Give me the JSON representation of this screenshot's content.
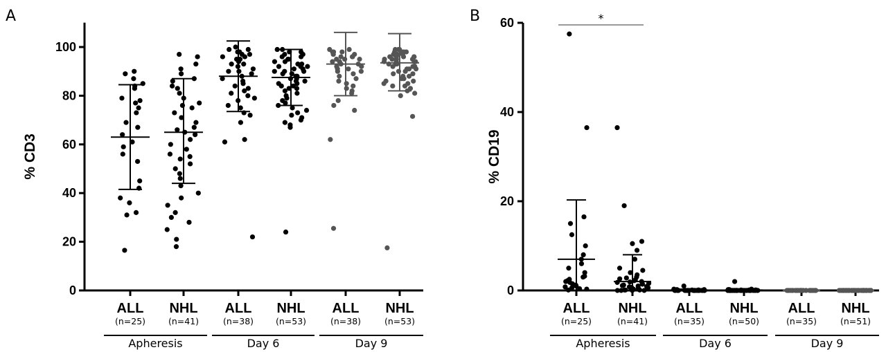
{
  "chart_data": [
    {
      "panel": "A",
      "type": "scatter",
      "ylabel": "% CD3",
      "ylim": [
        0,
        110
      ],
      "yticks": [
        0,
        20,
        40,
        60,
        80,
        100
      ],
      "groups": [
        "Apheresis",
        "Day 6",
        "Day 9"
      ],
      "categories": [
        {
          "name": "ALL",
          "n": "(n=25)",
          "group": "Apheresis",
          "mean": 63,
          "sd_low": 41.5,
          "sd_high": 84.5,
          "color": "#000000",
          "values": [
            90,
            89,
            87,
            85,
            84,
            83,
            79,
            78,
            77,
            75,
            73,
            69,
            67,
            64,
            61,
            59,
            56,
            53,
            45,
            42,
            38,
            36,
            32,
            31,
            16.5
          ]
        },
        {
          "name": "NHL",
          "n": "(n=41)",
          "group": "Apheresis",
          "mean": 65,
          "sd_low": 44,
          "sd_high": 87,
          "color": "#000000",
          "values": [
            97,
            96,
            93,
            91,
            89,
            87,
            86,
            84,
            83,
            81,
            79,
            77,
            76,
            75,
            73,
            71,
            69,
            67,
            66,
            65,
            64,
            62,
            60,
            58,
            56,
            55,
            54,
            52,
            50,
            48,
            46,
            43,
            40,
            38,
            35,
            32,
            30,
            28,
            25,
            21,
            18
          ]
        },
        {
          "name": "ALL",
          "n": "(n=38)",
          "group": "Day 6",
          "mean": 88,
          "sd_low": 73.5,
          "sd_high": 102.5,
          "color": "#000000",
          "values": [
            100,
            99,
            99,
            98,
            98,
            97,
            97,
            96,
            96,
            95,
            95,
            94,
            93,
            93,
            92,
            91,
            90,
            90,
            89,
            88,
            87,
            86,
            85,
            84,
            83,
            82,
            81,
            80,
            79,
            78,
            76,
            75,
            73,
            72,
            69,
            62,
            61,
            22
          ]
        },
        {
          "name": "NHL",
          "n": "(n=53)",
          "group": "Day 6",
          "mean": 87.5,
          "sd_low": 76,
          "sd_high": 99,
          "color": "#000000",
          "values": [
            99,
            99,
            98,
            98,
            97,
            97,
            96,
            96,
            95,
            95,
            94,
            94,
            93,
            93,
            92,
            92,
            91,
            91,
            90,
            90,
            89,
            89,
            88,
            88,
            87,
            87,
            86,
            86,
            85,
            85,
            84,
            84,
            83,
            83,
            82,
            81,
            80,
            79,
            78,
            77,
            76,
            75,
            74,
            73,
            72,
            71,
            70,
            69,
            68,
            67,
            92,
            90,
            24
          ]
        },
        {
          "name": "ALL",
          "n": "(n=38)",
          "group": "Day 9",
          "mean": 93,
          "sd_low": 80,
          "sd_high": 106,
          "color": "#555555",
          "values": [
            99,
            99,
            98,
            98,
            98,
            97,
            97,
            97,
            96,
            96,
            96,
            95,
            95,
            95,
            94,
            94,
            93,
            93,
            92,
            92,
            91,
            91,
            90,
            90,
            89,
            88,
            87,
            86,
            85,
            84,
            83,
            82,
            81,
            78,
            76,
            74,
            62,
            25.5
          ]
        },
        {
          "name": "NHL",
          "n": "(n=53)",
          "group": "Day 9",
          "mean": 93.5,
          "sd_low": 82,
          "sd_high": 105.5,
          "color": "#555555",
          "values": [
            99,
            99,
            99,
            98,
            98,
            98,
            98,
            97,
            97,
            97,
            97,
            96,
            96,
            96,
            96,
            95,
            95,
            95,
            95,
            94,
            94,
            94,
            94,
            93,
            93,
            93,
            92,
            92,
            92,
            91,
            91,
            91,
            90,
            90,
            89,
            89,
            88,
            88,
            87,
            87,
            86,
            86,
            85,
            85,
            84,
            84,
            83,
            82,
            81,
            80,
            71.5,
            96,
            17.5
          ]
        }
      ]
    },
    {
      "panel": "B",
      "type": "scatter",
      "ylabel": "% CD19",
      "ylim": [
        0,
        60
      ],
      "yticks": [
        0,
        20,
        40,
        60
      ],
      "groups": [
        "Apheresis",
        "Day 6",
        "Day 9"
      ],
      "significance": {
        "label": "*",
        "from": 0,
        "to": 1
      },
      "categories": [
        {
          "name": "ALL",
          "n": "(n=25)",
          "group": "Apheresis",
          "mean": 7,
          "sd_low": 0,
          "sd_high": 20.3,
          "color": "#000000",
          "values": [
            57.5,
            36.5,
            16.5,
            15,
            12.5,
            10,
            8,
            7,
            6,
            5,
            4,
            3.2,
            3,
            2.5,
            2.2,
            2,
            1.8,
            1.5,
            1.2,
            1,
            0.8,
            0.6,
            0.4,
            0.3,
            0.1
          ]
        },
        {
          "name": "NHL",
          "n": "(n=41)",
          "group": "Apheresis",
          "mean": 2,
          "sd_low": 0,
          "sd_high": 8,
          "color": "#000000",
          "values": [
            36.5,
            19,
            11,
            10.5,
            9,
            7,
            5,
            4.5,
            4,
            3.5,
            3,
            2.8,
            2.6,
            2.4,
            2.2,
            2,
            1.9,
            1.8,
            1.6,
            1.5,
            1.4,
            1.2,
            1.1,
            1,
            0.9,
            0.8,
            0.7,
            0.6,
            0.5,
            0.4,
            0.3,
            0.3,
            0.2,
            0.2,
            0.1,
            0.1,
            0.1,
            0,
            0,
            0,
            0
          ]
        },
        {
          "name": "ALL",
          "n": "(n=35)",
          "group": "Day 6",
          "mean": 0.1,
          "sd_low": 0,
          "sd_high": 0.3,
          "color": "#000000",
          "values": [
            1,
            0.3,
            0.2,
            0.2,
            0.1,
            0.1,
            0.1,
            0.1,
            0,
            0,
            0,
            0,
            0,
            0,
            0,
            0,
            0,
            0,
            0,
            0,
            0,
            0,
            0,
            0,
            0,
            0,
            0,
            0,
            0,
            0,
            0,
            0,
            0,
            0,
            0
          ]
        },
        {
          "name": "NHL",
          "n": "(n=50)",
          "group": "Day 6",
          "mean": 0.1,
          "sd_low": 0,
          "sd_high": 0.3,
          "color": "#000000",
          "values": [
            2,
            0.3,
            0.2,
            0.2,
            0.1,
            0.1,
            0.1,
            0.1,
            0,
            0,
            0,
            0,
            0,
            0,
            0,
            0,
            0,
            0,
            0,
            0,
            0,
            0,
            0,
            0,
            0,
            0,
            0,
            0,
            0,
            0,
            0,
            0,
            0,
            0,
            0,
            0,
            0,
            0,
            0,
            0,
            0,
            0,
            0,
            0,
            0,
            0,
            0,
            0,
            0,
            0
          ]
        },
        {
          "name": "ALL",
          "n": "(n=35)",
          "group": "Day 9",
          "mean": 0,
          "sd_low": 0,
          "sd_high": 0,
          "color": "#555555",
          "values": [
            0,
            0,
            0,
            0,
            0,
            0,
            0,
            0,
            0,
            0,
            0,
            0,
            0,
            0,
            0,
            0,
            0,
            0,
            0,
            0,
            0,
            0,
            0,
            0,
            0,
            0,
            0,
            0,
            0,
            0,
            0,
            0,
            0,
            0,
            0
          ]
        },
        {
          "name": "NHL",
          "n": "(n=51)",
          "group": "Day 9",
          "mean": 0,
          "sd_low": 0,
          "sd_high": 0,
          "color": "#555555",
          "values": [
            0,
            0,
            0,
            0,
            0,
            0,
            0,
            0,
            0,
            0,
            0,
            0,
            0,
            0,
            0,
            0,
            0,
            0,
            0,
            0,
            0,
            0,
            0,
            0,
            0,
            0,
            0,
            0,
            0,
            0,
            0,
            0,
            0,
            0,
            0,
            0,
            0,
            0,
            0,
            0,
            0,
            0,
            0,
            0,
            0,
            0,
            0,
            0,
            0,
            0,
            0
          ]
        }
      ]
    }
  ]
}
